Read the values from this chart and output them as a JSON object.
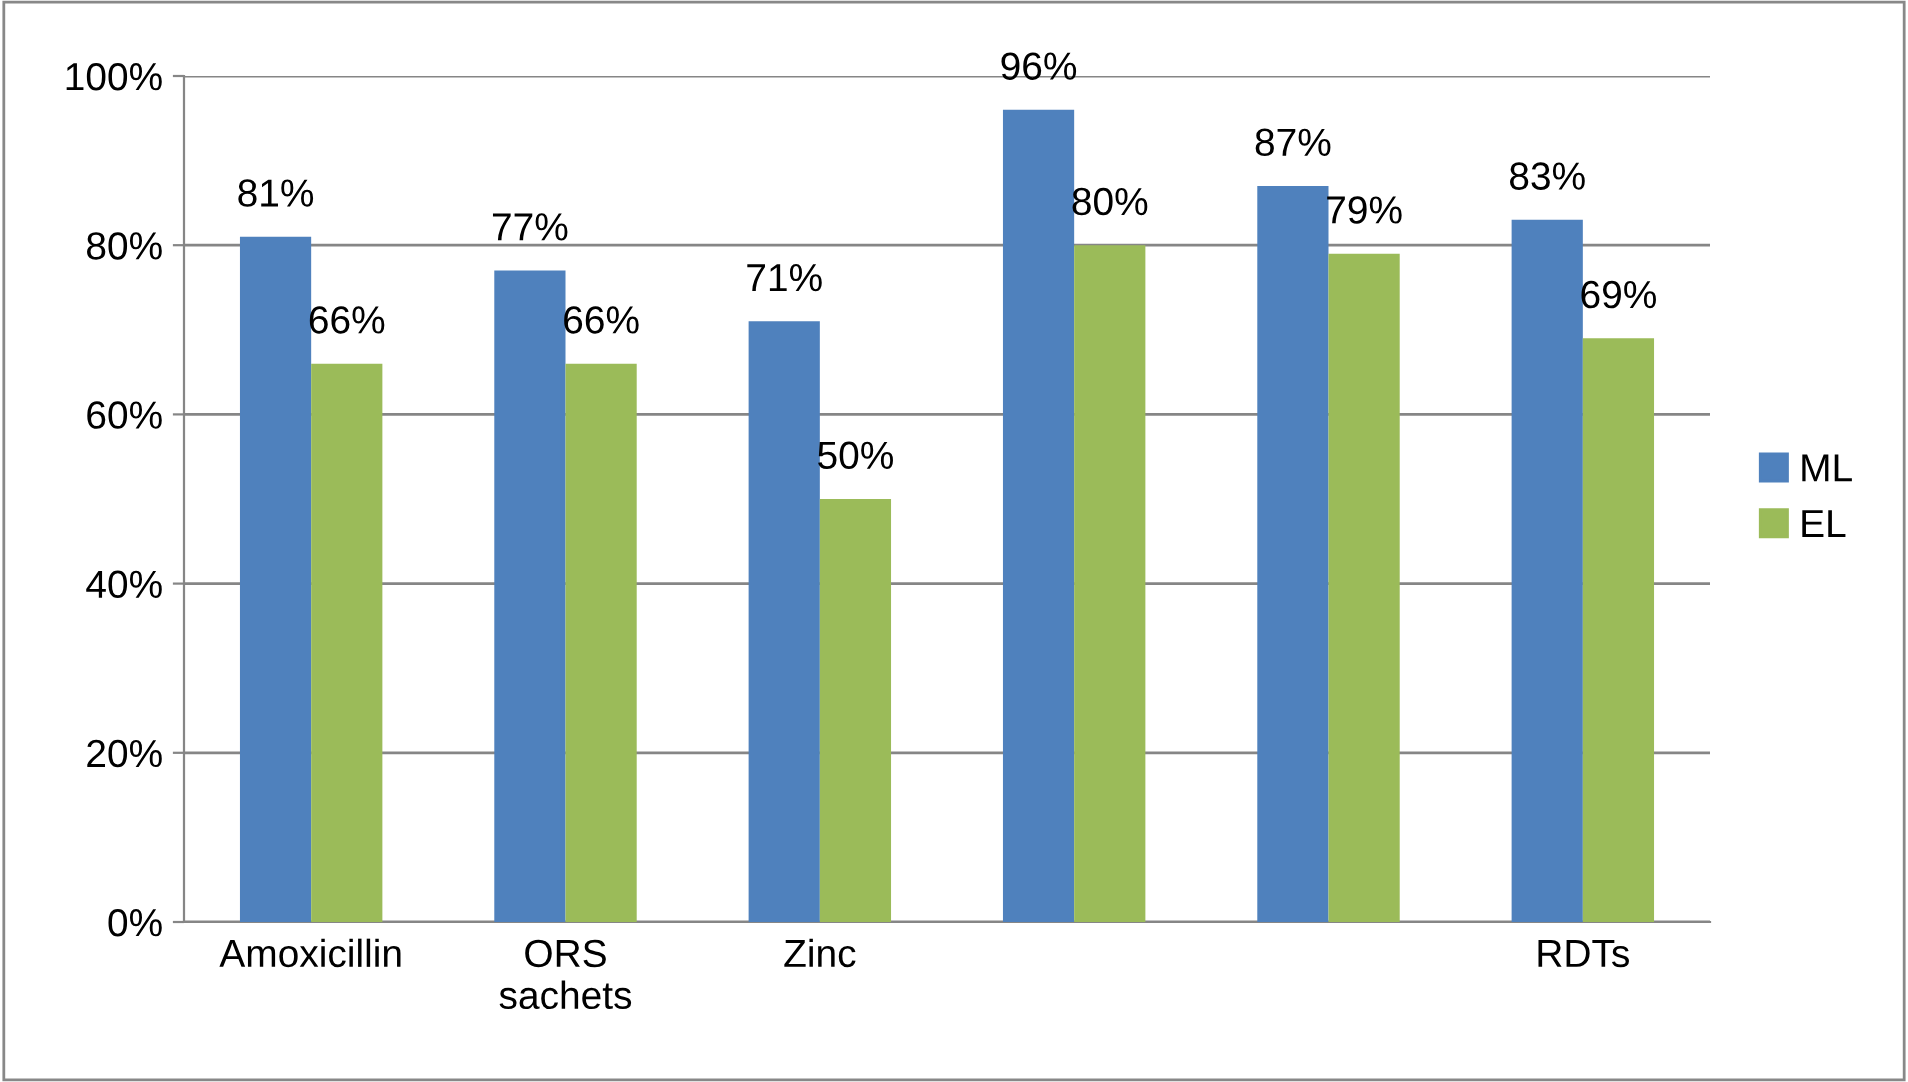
{
  "chart_data": {
    "type": "bar",
    "categories": [
      "Amoxicillin",
      "ORS\nsachets",
      "Zinc",
      null,
      null,
      "RDTs"
    ],
    "series": [
      {
        "name": "ML",
        "color": "#4f81bd",
        "values": [
          81,
          77,
          71,
          96,
          87,
          83
        ]
      },
      {
        "name": "EL",
        "color": "#9bbb59",
        "values": [
          66,
          66,
          50,
          80,
          79,
          69
        ]
      }
    ],
    "ylim": [
      0,
      100
    ],
    "yticks": [
      {
        "value": 0,
        "label": "0%"
      },
      {
        "value": 20,
        "label": "20%"
      },
      {
        "value": 40,
        "label": "40%"
      },
      {
        "value": 60,
        "label": "60%"
      },
      {
        "value": 80,
        "label": "80%"
      },
      {
        "value": 100,
        "label": "100%"
      }
    ],
    "value_labels": [
      [
        "81%",
        "77%",
        "71%",
        "96%",
        "87%",
        "83%"
      ],
      [
        "66%",
        "66%",
        "50%",
        "80%",
        "79%",
        "69%"
      ]
    ],
    "grid": "y",
    "legend": "right"
  }
}
